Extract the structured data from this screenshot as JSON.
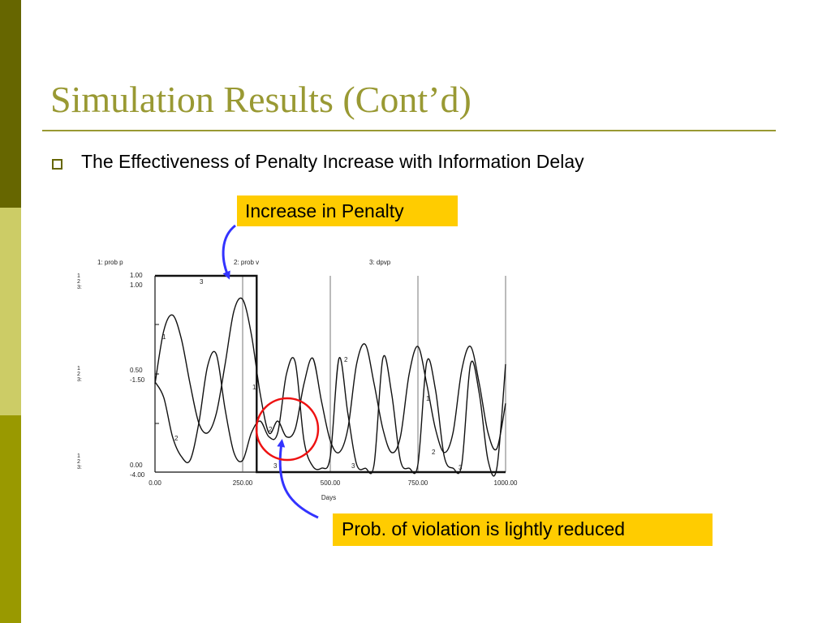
{
  "slide": {
    "title": "Simulation Results (Cont’d)",
    "bullet": "The Effectiveness of Penalty Increase with Information Delay",
    "callout_top": "Increase in Penalty",
    "callout_bottom": "Prob. of violation is lightly reduced",
    "colors": {
      "sidebar_dark": "#666600",
      "sidebar_light": "#cccc66",
      "sidebar_mid": "#999900",
      "title": "#999933",
      "callout_bg": "#ffcc00",
      "arrow": "#3333ff",
      "circle": "#ee1111"
    }
  },
  "chart_data": {
    "type": "line",
    "legend": [
      "1: prob p",
      "2: prob v",
      "3: dpvp"
    ],
    "xlabel": "Days",
    "xlim": [
      0,
      1000
    ],
    "x_ticks": [
      "0.00",
      "250.00",
      "500.00",
      "750.00",
      "1000.00"
    ],
    "y_axis_pen_labels": [
      "1\n2\n3:",
      "1\n2\n3:",
      "1\n2\n3:"
    ],
    "y_ticks_top": [
      "1.00",
      "1.00"
    ],
    "y_ticks_mid": [
      "0.50",
      "-1.50"
    ],
    "y_ticks_bottom": [
      "0.00",
      "-4.00"
    ],
    "series": [
      {
        "name": "1: prob p",
        "x": [
          0,
          25,
          50,
          75,
          100,
          125,
          150,
          175,
          200,
          225,
          250,
          275,
          300,
          325,
          350,
          375,
          400,
          425,
          450,
          475,
          500,
          525,
          550,
          575,
          600,
          625,
          650,
          675,
          700,
          725,
          750,
          775,
          800,
          825,
          850,
          875,
          900,
          925,
          950,
          975,
          1000
        ],
        "y": [
          0.45,
          0.72,
          0.8,
          0.68,
          0.45,
          0.25,
          0.2,
          0.3,
          0.55,
          0.82,
          0.88,
          0.7,
          0.4,
          0.2,
          0.26,
          0.18,
          0.22,
          0.45,
          0.58,
          0.36,
          0.16,
          0.1,
          0.22,
          0.55,
          0.65,
          0.45,
          0.22,
          0.1,
          0.18,
          0.5,
          0.64,
          0.45,
          0.22,
          0.1,
          0.2,
          0.52,
          0.64,
          0.45,
          0.2,
          0.12,
          0.35
        ]
      },
      {
        "name": "2: prob v",
        "x": [
          0,
          25,
          50,
          75,
          100,
          125,
          150,
          175,
          200,
          225,
          250,
          275,
          300,
          325,
          350,
          375,
          400,
          425,
          450,
          475,
          500,
          525,
          550,
          575,
          600,
          625,
          650,
          675,
          700,
          725,
          750,
          775,
          800,
          825,
          850,
          875,
          900,
          925,
          950,
          975,
          1000
        ],
        "y": [
          0.46,
          0.38,
          0.18,
          0.08,
          0.06,
          0.25,
          0.54,
          0.6,
          0.32,
          0.1,
          0.06,
          0.2,
          0.26,
          0.18,
          0.2,
          0.5,
          0.56,
          0.16,
          0.03,
          0.02,
          0.08,
          0.58,
          0.3,
          0.04,
          0.02,
          0.04,
          0.58,
          0.4,
          0.06,
          0.02,
          0.04,
          0.56,
          0.42,
          0.08,
          0.02,
          0.04,
          0.55,
          0.4,
          0.06,
          0.02,
          0.55
        ]
      },
      {
        "name": "3: dpvp",
        "x": [
          0,
          290,
          290,
          1000
        ],
        "y": [
          1.0,
          1.0,
          0.0,
          0.0
        ]
      }
    ],
    "annotations": {
      "penalty_step_day": 290,
      "circled_region_days": [
        300,
        425
      ],
      "vertical_gridlines_days": [
        250,
        500,
        750,
        1000
      ]
    }
  }
}
